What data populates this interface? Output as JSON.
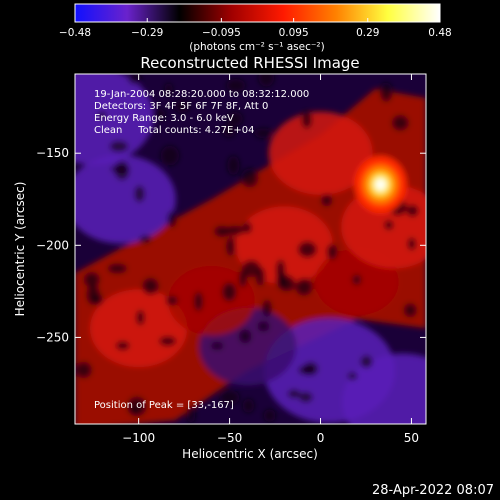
{
  "chart_data": {
    "type": "heatmap",
    "title": "Reconstructed RHESSI Image",
    "xlabel": "Heliocentric X (arcsec)",
    "ylabel": "Heliocentric Y (arcsec)",
    "xlim": [
      -135,
      58
    ],
    "ylim": [
      -297,
      -107
    ],
    "xticks": [
      -100,
      -50,
      0,
      50
    ],
    "xtick_labels": [
      "−100",
      "−50",
      "0",
      "50"
    ],
    "yticks": [
      -150,
      -200,
      -250
    ],
    "ytick_labels": [
      "−150",
      "−200",
      "−250"
    ],
    "colorbar": {
      "min": -0.48,
      "max": 0.48,
      "ticks": [
        -0.48,
        -0.29,
        -0.095,
        0.095,
        0.29,
        0.48
      ],
      "tick_labels": [
        "−0.48",
        "−0.29",
        "−0.095",
        "0.095",
        "0.29",
        "0.48"
      ],
      "unit_label": "(photons cm⁻² s⁻¹ asec⁻²)",
      "colors": [
        "#1010ff",
        "#6a22cc",
        "#000000",
        "#a00000",
        "#ff1a00",
        "#ff8000",
        "#ffff40",
        "#ffffff"
      ]
    },
    "annotations": [
      "19-Jan-2004 08:28:20.000 to 08:32:12.000",
      "Detectors: 3F 4F 5F 6F 7F 8F, Att 0",
      "Energy Range: 3.0 - 6.0 keV",
      "Clean     Total counts: 4.27E+04"
    ],
    "peak_label": "Position of Peak = [33,-167]",
    "peak": {
      "x": 33,
      "y": -167,
      "value": 0.48
    },
    "regions": [
      {
        "type": "negative",
        "x": -125,
        "y": -130,
        "level": -0.25
      },
      {
        "type": "negative",
        "x": -110,
        "y": -175,
        "level": -0.22
      },
      {
        "type": "negative",
        "x": 5,
        "y": -268,
        "level": -0.28
      },
      {
        "type": "negative",
        "x": 45,
        "y": -285,
        "level": -0.25
      },
      {
        "type": "negative",
        "x": -40,
        "y": -255,
        "level": -0.18
      },
      {
        "type": "positive",
        "x": 0,
        "y": -150,
        "level": 0.2
      },
      {
        "type": "positive",
        "x": -20,
        "y": -200,
        "level": 0.18
      },
      {
        "type": "positive",
        "x": -100,
        "y": -245,
        "level": 0.18
      },
      {
        "type": "positive",
        "x": -60,
        "y": -230,
        "level": 0.15
      },
      {
        "type": "positive",
        "x": 20,
        "y": -220,
        "level": 0.14
      },
      {
        "type": "positive",
        "x": 40,
        "y": -190,
        "level": 0.2
      }
    ]
  },
  "footer": {
    "timestamp": "28-Apr-2022 08:07"
  }
}
